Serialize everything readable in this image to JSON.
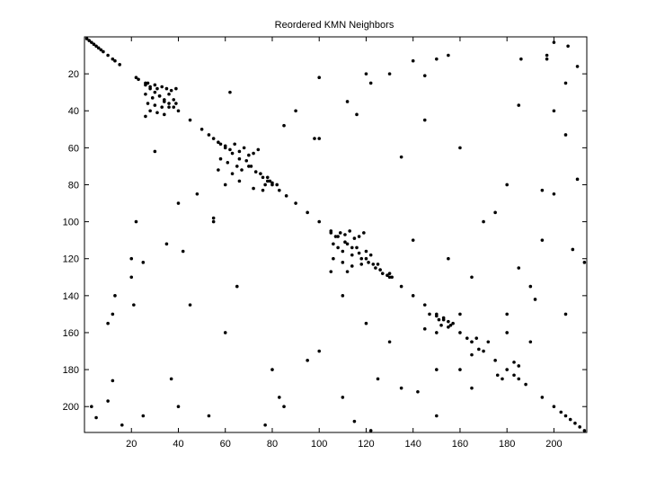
{
  "chart_data": {
    "type": "scatter",
    "title": "Reordered KMN Neighbors",
    "x": [
      1,
      2,
      3,
      4,
      5,
      6,
      7,
      8,
      10,
      12,
      13,
      15,
      22,
      23,
      26,
      28,
      30,
      32,
      34,
      36,
      38,
      40,
      45,
      50,
      53,
      55,
      57,
      60,
      63,
      66,
      70,
      73,
      76,
      78,
      80,
      83,
      86,
      90,
      95,
      100,
      105,
      108,
      111,
      114,
      117,
      120,
      123,
      126,
      130,
      135,
      140,
      145,
      150,
      153,
      156,
      160,
      165,
      170,
      175,
      180,
      183,
      185,
      188,
      195,
      200,
      203,
      205,
      207,
      209,
      211,
      213,
      26,
      27,
      28,
      30,
      31,
      33,
      35,
      37,
      39,
      26,
      29,
      32,
      34,
      36,
      38,
      27,
      30,
      33,
      36,
      28,
      31,
      26,
      34,
      39,
      58,
      60,
      62,
      64,
      66,
      68,
      70,
      72,
      74,
      58,
      61,
      65,
      69,
      57,
      63,
      67,
      71,
      75,
      78,
      79,
      77,
      80,
      82,
      76,
      60,
      66,
      72,
      105,
      107,
      109,
      111,
      113,
      115,
      117,
      119,
      106,
      108,
      110,
      112,
      114,
      116,
      118,
      120,
      122,
      106,
      110,
      114,
      118,
      121,
      124,
      125,
      127,
      105,
      112,
      129,
      130,
      131,
      150,
      151,
      153,
      155,
      157,
      155,
      152,
      147,
      145,
      150,
      160,
      163,
      165,
      167,
      168,
      22,
      100,
      45,
      145,
      25,
      122,
      3,
      200,
      5,
      206,
      77,
      210,
      37,
      185,
      40,
      90,
      55,
      98,
      120,
      20,
      130,
      20,
      145,
      21,
      140,
      13,
      186,
      12,
      197,
      197,
      10,
      200,
      40,
      180,
      80,
      175,
      95,
      190,
      165,
      140,
      110,
      190,
      135,
      205,
      150,
      10,
      155,
      12,
      150,
      62,
      30,
      85,
      48,
      100,
      55,
      116,
      42,
      112,
      35,
      150,
      180,
      165,
      172,
      176,
      183,
      178,
      185,
      192,
      142,
      208,
      115,
      213,
      122,
      185,
      125,
      60,
      160,
      65,
      135,
      85,
      200,
      120,
      155,
      130,
      165,
      170,
      100,
      205,
      25,
      210,
      16,
      53,
      205,
      83,
      195,
      160,
      180,
      195,
      110
    ],
    "y": [
      1,
      2,
      3,
      4,
      5,
      6,
      7,
      8,
      10,
      12,
      13,
      15,
      22,
      23,
      26,
      28,
      30,
      32,
      34,
      36,
      38,
      40,
      45,
      50,
      53,
      55,
      57,
      60,
      63,
      66,
      70,
      73,
      76,
      78,
      80,
      83,
      86,
      90,
      95,
      100,
      105,
      108,
      111,
      114,
      117,
      120,
      123,
      126,
      130,
      135,
      140,
      145,
      150,
      153,
      156,
      160,
      165,
      170,
      175,
      180,
      183,
      185,
      188,
      195,
      200,
      203,
      205,
      207,
      209,
      211,
      213,
      25,
      25,
      27,
      26,
      28,
      27,
      28,
      29,
      28,
      31,
      33,
      32,
      35,
      31,
      34,
      36,
      37,
      38,
      38,
      40,
      41,
      43,
      42,
      36,
      58,
      59,
      61,
      58,
      62,
      60,
      64,
      63,
      61,
      66,
      68,
      70,
      67,
      72,
      74,
      72,
      70,
      74,
      76,
      78,
      80,
      79,
      80,
      83,
      80,
      78,
      82,
      106,
      108,
      106,
      107,
      105,
      109,
      108,
      106,
      112,
      114,
      116,
      112,
      118,
      114,
      120,
      116,
      118,
      120,
      122,
      124,
      123,
      122,
      125,
      123,
      128,
      127,
      127,
      129,
      128,
      130,
      151,
      153,
      152,
      154,
      155,
      157,
      156,
      150,
      158,
      160,
      150,
      163,
      165,
      163,
      169,
      100,
      22,
      145,
      45,
      122,
      25,
      200,
      3,
      206,
      5,
      210,
      77,
      185,
      37,
      90,
      40,
      98,
      55,
      20,
      120,
      20,
      130,
      21,
      145,
      13,
      140,
      12,
      186,
      12,
      10,
      197,
      40,
      200,
      80,
      180,
      95,
      175,
      165,
      190,
      110,
      140,
      135,
      190,
      150,
      205,
      155,
      10,
      150,
      12,
      30,
      62,
      48,
      85,
      55,
      100,
      42,
      116,
      35,
      112,
      180,
      150,
      172,
      165,
      183,
      176,
      185,
      178,
      142,
      192,
      115,
      208,
      122,
      213,
      125,
      185,
      160,
      60,
      135,
      65,
      200,
      85,
      155,
      120,
      165,
      130,
      100,
      170,
      25,
      205,
      16,
      210,
      205,
      53,
      195,
      83,
      180,
      160,
      110,
      195
    ],
    "xlim": [
      0,
      214
    ],
    "ylim": [
      0,
      214
    ],
    "y_reversed": true,
    "xticks": [
      20,
      40,
      60,
      80,
      100,
      120,
      140,
      160,
      180,
      200
    ],
    "yticks": [
      20,
      40,
      60,
      80,
      100,
      120,
      140,
      160,
      180,
      200
    ],
    "color": "#000000"
  }
}
